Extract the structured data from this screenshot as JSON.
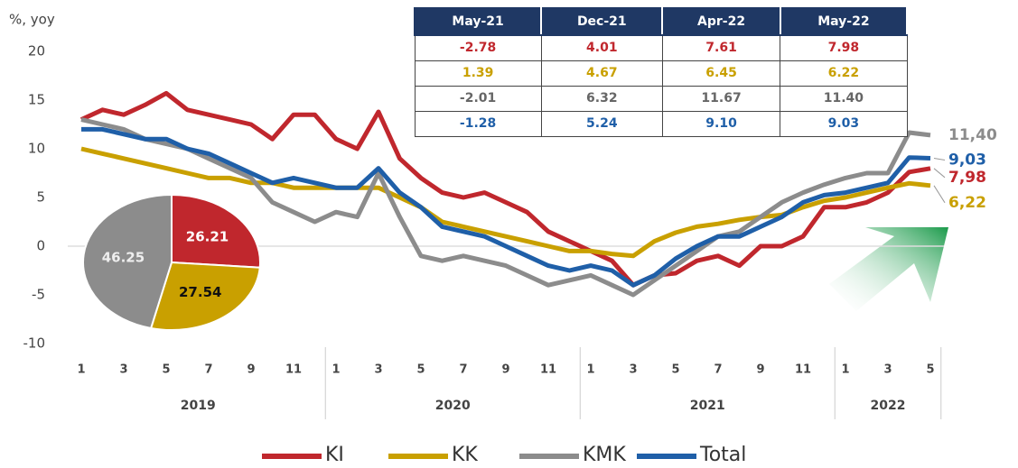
{
  "chart_data": [
    {
      "type": "line",
      "y_label": "%, yoy",
      "categories": [
        "1",
        null,
        "3",
        null,
        "5",
        null,
        "7",
        null,
        "9",
        null,
        "11",
        null,
        "1",
        null,
        "3",
        null,
        "5",
        null,
        "7",
        null,
        "9",
        null,
        "11",
        null,
        "1",
        null,
        "3",
        null,
        "5",
        null,
        "7",
        null,
        "9",
        null,
        "11",
        null,
        "1",
        null,
        "3",
        null,
        "5"
      ],
      "years": [
        "2019",
        "2020",
        "2021",
        "2022"
      ],
      "ylim": [
        -10,
        20
      ],
      "yticks": [
        -10,
        -5,
        0,
        5,
        10,
        15,
        20
      ],
      "grid": false,
      "zero_line": true,
      "legend": "bottom",
      "series": [
        {
          "name": "KI",
          "color": "#c0272d",
          "values": [
            13,
            14,
            13.5,
            14.5,
            15.7,
            14,
            13.5,
            13,
            12.5,
            11,
            13.5,
            13.5,
            11,
            10,
            13.8,
            9,
            7,
            5.5,
            5,
            5.5,
            4.5,
            3.5,
            1.5,
            0.5,
            -0.5,
            -1.5,
            -4,
            -3,
            -2.78,
            -1.5,
            -1,
            -2,
            0,
            0,
            1,
            4.01,
            4,
            4.5,
            5.5,
            7.61,
            7.98
          ],
          "value_labels": [
            null,
            null,
            null,
            null,
            null,
            null,
            null,
            null,
            null,
            null,
            null,
            null,
            null,
            null,
            null,
            null,
            null,
            null,
            null,
            null,
            null,
            null,
            null,
            null,
            null,
            null,
            null,
            null,
            null,
            null,
            null,
            null,
            null,
            null,
            null,
            null,
            null,
            null,
            null,
            null,
            "7,98"
          ]
        },
        {
          "name": "KK",
          "color": "#c9a000",
          "values": [
            10,
            9.5,
            9,
            8.5,
            8,
            7.5,
            7,
            7,
            6.5,
            6.5,
            6,
            6,
            6,
            6,
            6,
            5,
            4,
            2.5,
            2,
            1.5,
            1,
            0.5,
            0,
            -0.5,
            -0.5,
            -0.8,
            -1,
            0.5,
            1.39,
            2,
            2.3,
            2.7,
            3,
            3.2,
            4,
            4.67,
            5,
            5.5,
            6,
            6.45,
            6.22
          ],
          "value_labels": [
            null,
            null,
            null,
            null,
            null,
            null,
            null,
            null,
            null,
            null,
            null,
            null,
            null,
            null,
            null,
            null,
            null,
            null,
            null,
            null,
            null,
            null,
            null,
            null,
            null,
            null,
            null,
            null,
            null,
            null,
            null,
            null,
            null,
            null,
            null,
            null,
            null,
            null,
            null,
            null,
            "6,22"
          ]
        },
        {
          "name": "KMK",
          "color": "#8c8c8c",
          "values": [
            13,
            12.5,
            12,
            11,
            10.5,
            10,
            9,
            8,
            7,
            4.5,
            3.5,
            2.5,
            3.5,
            3,
            7.5,
            3,
            -1,
            -1.5,
            -1,
            -1.5,
            -2,
            -3,
            -4,
            -3.5,
            -3,
            -4,
            -5,
            -3.5,
            -2.01,
            -0.5,
            1,
            1.5,
            3,
            4.5,
            5.5,
            6.32,
            7,
            7.5,
            7.5,
            11.67,
            11.4
          ],
          "value_labels": [
            null,
            null,
            null,
            null,
            null,
            null,
            null,
            null,
            null,
            null,
            null,
            null,
            null,
            null,
            null,
            null,
            null,
            null,
            null,
            null,
            null,
            null,
            null,
            null,
            null,
            null,
            null,
            null,
            null,
            null,
            null,
            null,
            null,
            null,
            null,
            null,
            null,
            null,
            null,
            null,
            "11,40"
          ]
        },
        {
          "name": "Total",
          "color": "#1f5fa8",
          "values": [
            12,
            12,
            11.5,
            11,
            11,
            10,
            9.5,
            8.5,
            7.5,
            6.5,
            7,
            6.5,
            6,
            6,
            8,
            5.5,
            4,
            2,
            1.5,
            1,
            0,
            -1,
            -2,
            -2.5,
            -2,
            -2.5,
            -4,
            -3,
            -1.28,
            0,
            1,
            1,
            2,
            3,
            4.5,
            5.24,
            5.5,
            6,
            6.5,
            9.1,
            9.03
          ],
          "value_labels": [
            null,
            null,
            null,
            null,
            null,
            null,
            null,
            null,
            null,
            null,
            null,
            null,
            null,
            null,
            null,
            null,
            null,
            null,
            null,
            null,
            null,
            null,
            null,
            null,
            null,
            null,
            null,
            null,
            null,
            null,
            null,
            null,
            null,
            null,
            null,
            null,
            null,
            null,
            null,
            null,
            "9,03"
          ]
        }
      ]
    },
    {
      "type": "pie",
      "values": [
        26.21,
        27.54,
        46.25
      ],
      "colors": [
        "#c0272d",
        "#c9a000",
        "#8c8c8c"
      ],
      "label_colors": [
        "#ffffff",
        "#111111",
        "#eeeeee"
      ]
    }
  ],
  "table": {
    "header": [
      "May-21",
      "Dec-21",
      "Apr-22",
      "May-22"
    ],
    "rows": [
      [
        "-2.78",
        "4.01",
        "7.61",
        "7.98"
      ],
      [
        "1.39",
        "4.67",
        "6.45",
        "6.22"
      ],
      [
        "-2.01",
        "6.32",
        "11.67",
        "11.40"
      ],
      [
        "-1.28",
        "5.24",
        "9.10",
        "9.03"
      ]
    ]
  }
}
